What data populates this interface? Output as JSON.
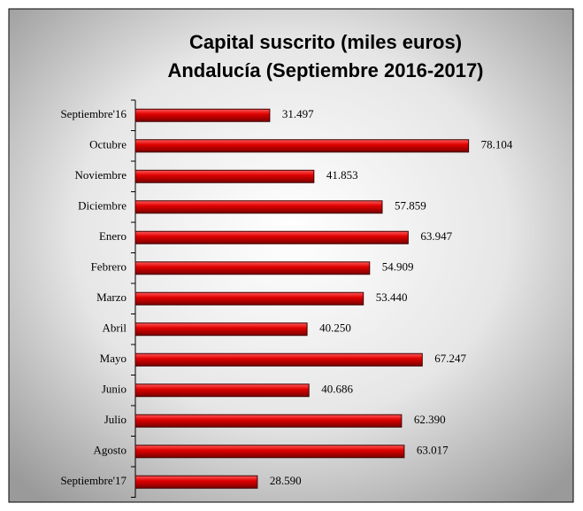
{
  "chart_data": {
    "type": "barh",
    "title": "Capital suscrito  (miles euros)",
    "subtitle": "Andalucía (Septiembre 2016-2017)",
    "categories": [
      "Septiembre'16",
      "Octubre",
      "Noviembre",
      "Diciembre",
      "Enero",
      "Febrero",
      "Marzo",
      "Abril",
      "Mayo",
      "Junio",
      "Julio",
      "Agosto",
      "Septiembre'17"
    ],
    "values": [
      31497,
      78104,
      41853,
      57859,
      63947,
      54909,
      53440,
      40250,
      67247,
      40686,
      62390,
      63017,
      28590
    ],
    "value_labels": [
      "31.497",
      "78.104",
      "41.853",
      "57.859",
      "63.947",
      "54.909",
      "53.440",
      "40.250",
      "67.247",
      "40.686",
      "62.390",
      "63.017",
      "28.590"
    ],
    "color": "#e00000",
    "xlim": [
      0,
      90000
    ]
  }
}
